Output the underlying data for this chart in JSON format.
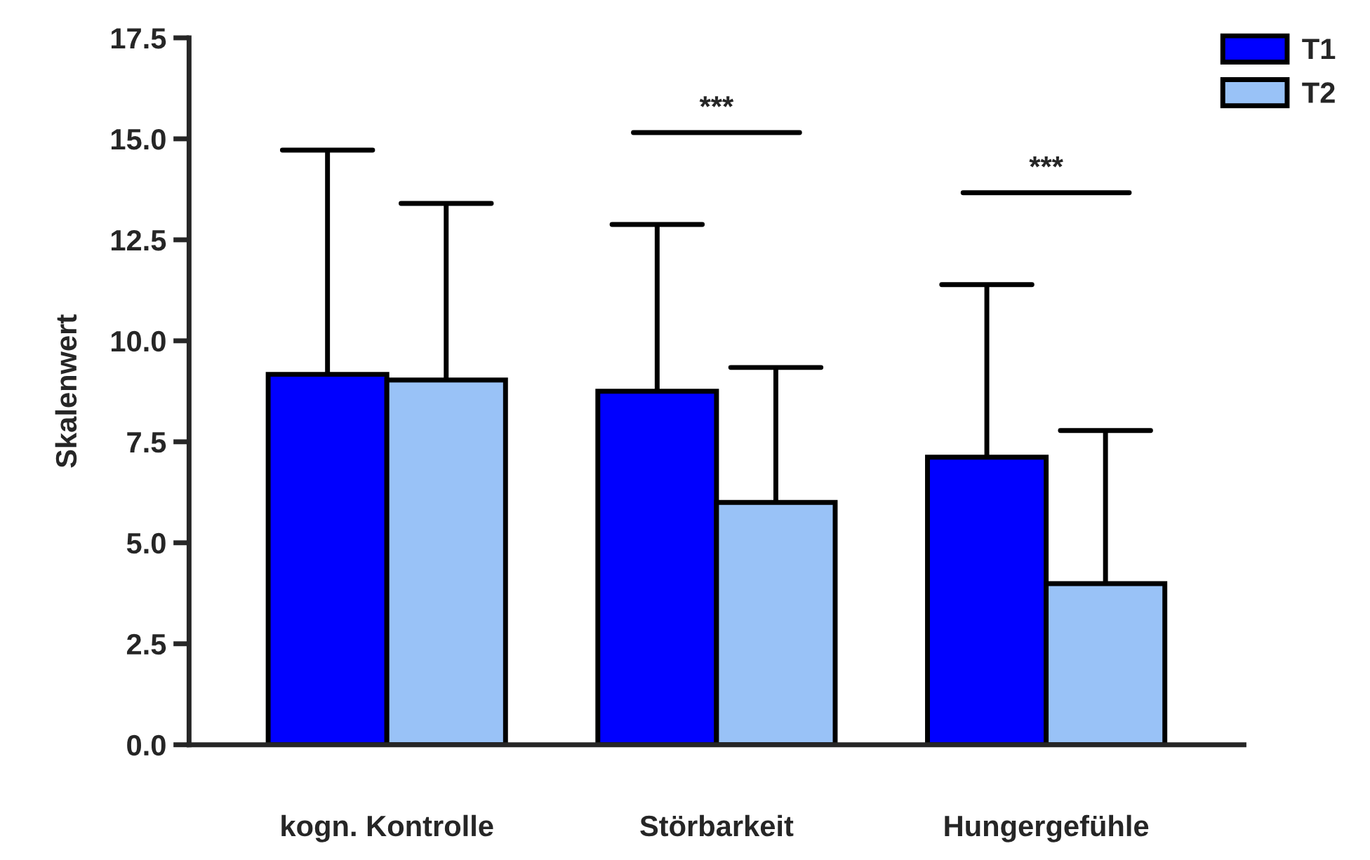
{
  "chart_data": {
    "type": "bar",
    "ylabel": "Skalenwert",
    "categories": [
      "kogn. Kontrolle",
      "Störbarkeit",
      "Hungergefühle"
    ],
    "series": [
      {
        "name": "T1",
        "color": "#0000ff",
        "values": [
          9.17,
          8.75,
          7.12
        ],
        "errors": [
          [
            9.17,
            14.72
          ],
          [
            8.75,
            12.88
          ],
          [
            7.12,
            11.39
          ]
        ]
      },
      {
        "name": "T2",
        "color": "#99c2f7",
        "values": [
          9.03,
          6.0,
          3.99
        ],
        "errors": [
          [
            9.03,
            13.4
          ],
          [
            6.0,
            9.34
          ],
          [
            3.99,
            7.78
          ]
        ]
      }
    ],
    "ylim": [
      0,
      17.5
    ],
    "yticks": [
      {
        "value": 0,
        "label": "0.0"
      },
      {
        "value": 2.5,
        "label": "2.5"
      },
      {
        "value": 5,
        "label": "5.0"
      },
      {
        "value": 7.5,
        "label": "7.5"
      },
      {
        "value": 10,
        "label": "10.0"
      },
      {
        "value": 12.5,
        "label": "12.5"
      },
      {
        "value": 15,
        "label": "15.0"
      },
      {
        "value": 17.5,
        "label": "17.5"
      }
    ],
    "annotations": [
      "***",
      "***"
    ],
    "grid": false,
    "legend": "top right"
  }
}
